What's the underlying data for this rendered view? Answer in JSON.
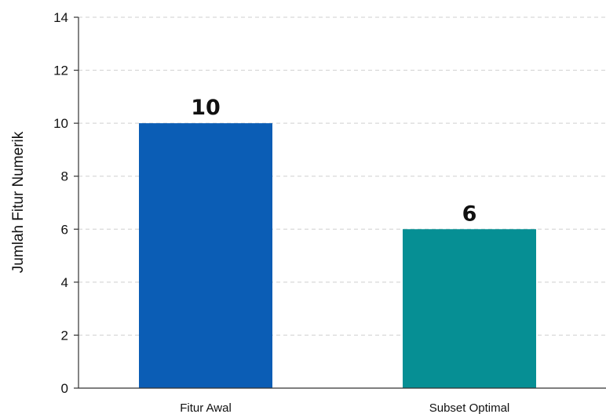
{
  "chart_data": {
    "type": "bar",
    "categories": [
      "Fitur Awal",
      "Subset Optimal"
    ],
    "values": [
      10,
      6
    ],
    "data_labels": [
      "10",
      "6"
    ],
    "bar_colors": [
      "#0b5db5",
      "#068f94"
    ],
    "title": "",
    "xlabel": "",
    "ylabel": "Jumlah Fitur Numerik",
    "ylim": [
      0,
      14
    ],
    "yticks": [
      0,
      2,
      4,
      6,
      8,
      10,
      12,
      14
    ],
    "grid": true,
    "legend": "none"
  }
}
